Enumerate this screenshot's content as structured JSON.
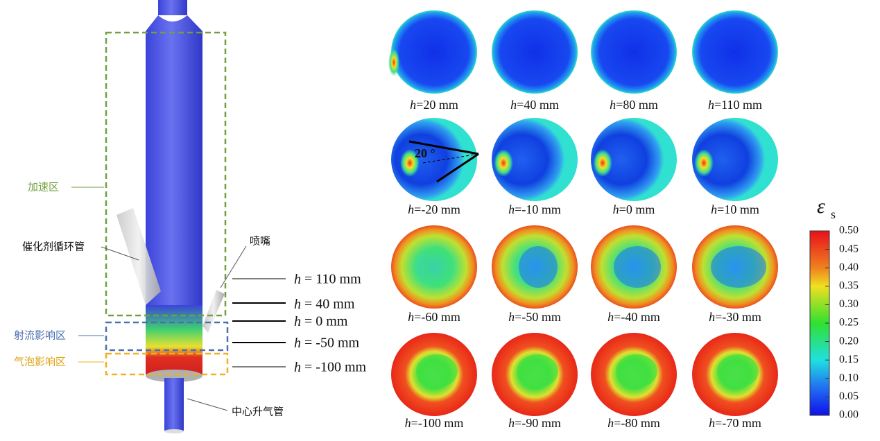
{
  "labels": {
    "acceleration_zone": "加速区",
    "jet_zone": "射流影响区",
    "bubble_zone": "气泡影响区",
    "catalyst_pipe": "催化剂循环管",
    "nozzle": "喷嘴",
    "center_riser": "中心升气管"
  },
  "heights": [
    "h = 110 mm",
    "h = 40 mm",
    "h = 0 mm",
    "h = -50 mm",
    "h = -100 mm"
  ],
  "slices": [
    [
      "h=20 mm",
      "h=40 mm",
      "h=80 mm",
      "h=110 mm"
    ],
    [
      "h=-20 mm",
      "h=-10 mm",
      "h=0 mm",
      "h=10 mm"
    ],
    [
      "h=-60 mm",
      "h=-50 mm",
      "h=-40 mm",
      "h=-30 mm"
    ],
    [
      "h=-100 mm",
      "h=-90 mm",
      "h=-80 mm",
      "h=-70 mm"
    ]
  ],
  "angle": "20 °",
  "colorbar": {
    "title": "ε",
    "subscript": "s",
    "range": [
      0,
      0.5
    ],
    "ticks": [
      {
        "value": 0,
        "label": "0.00"
      },
      {
        "value": 0.05,
        "label": "0.05"
      },
      {
        "value": 0.1,
        "label": "0.10"
      },
      {
        "value": 0.15,
        "label": "0.15"
      },
      {
        "value": 0.2,
        "label": "0.20"
      },
      {
        "value": 0.25,
        "label": "0.25"
      },
      {
        "value": 0.3,
        "label": "0.30"
      },
      {
        "value": 0.35,
        "label": "0.35"
      },
      {
        "value": 0.4,
        "label": "0.40"
      },
      {
        "value": 0.45,
        "label": "0.45"
      },
      {
        "value": 0.5,
        "label": "0.50"
      }
    ]
  }
}
